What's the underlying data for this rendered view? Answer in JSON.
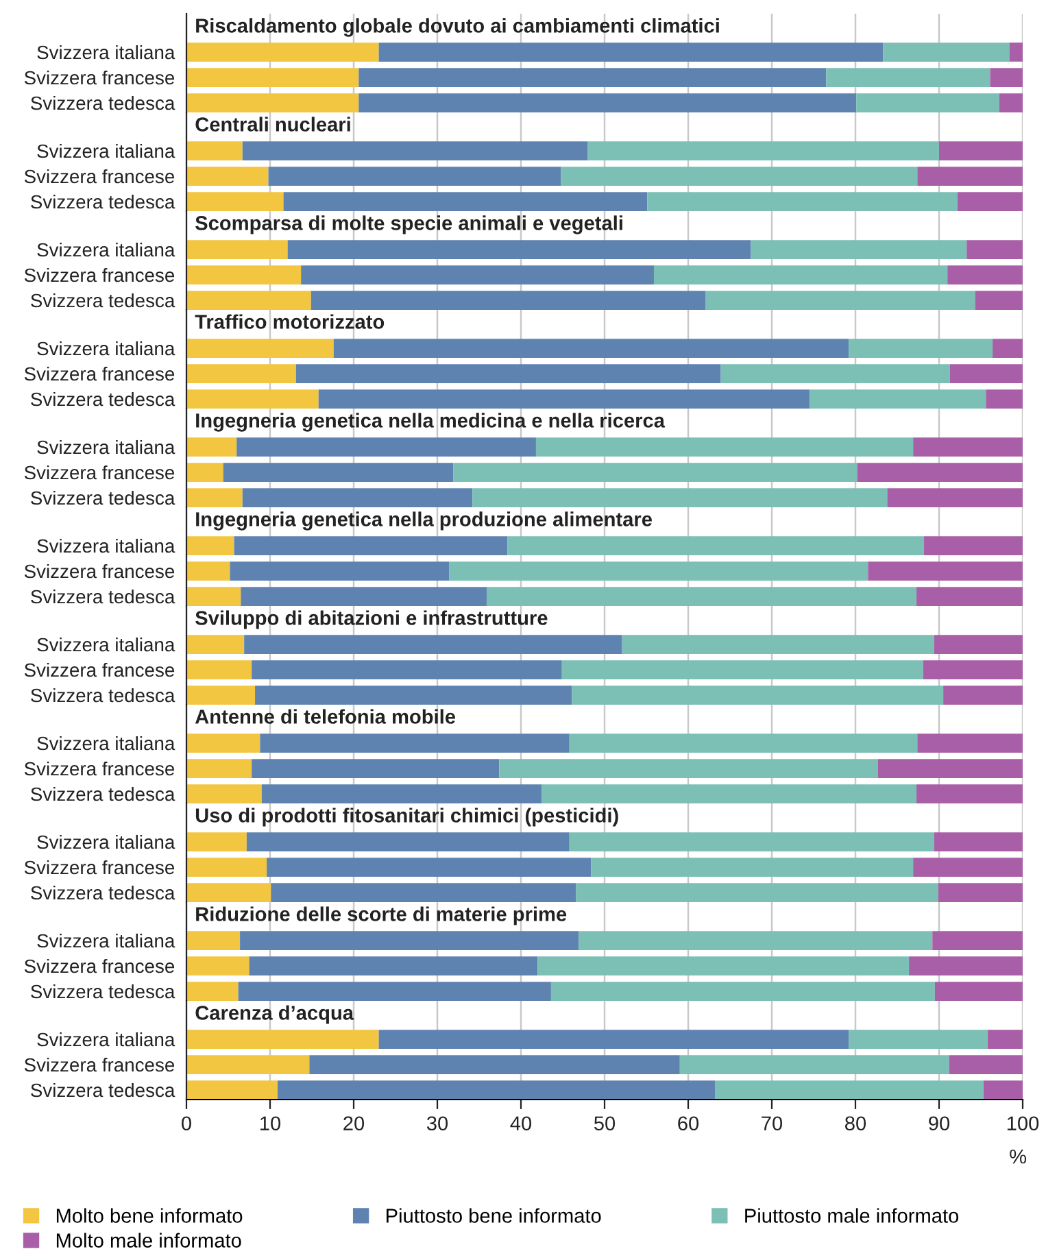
{
  "chart_data": [
    {
      "type": "bar",
      "orientation": "horizontal",
      "stacked": true,
      "title": "Riscaldamento globale dovuto ai cambiamenti climatici",
      "categories": [
        "Svizzera italiana",
        "Svizzera francese",
        "Svizzera tedesca"
      ],
      "xlim": [
        0,
        100
      ],
      "xticks": [
        0,
        10,
        20,
        30,
        40,
        50,
        60,
        70,
        80,
        90,
        100
      ],
      "grid": "x",
      "tick_labels": "y",
      "series": [
        {
          "color": "#f2c641",
          "values": [
            23.0,
            20.6,
            20.6
          ]
        },
        {
          "color": "#5f83b1",
          "values": [
            60.3,
            55.9,
            59.5
          ]
        },
        {
          "color": "#7bbfb5",
          "values": [
            15.1,
            19.6,
            17.1
          ]
        },
        {
          "color": "#a95fa7",
          "values": [
            1.6,
            3.9,
            2.8
          ]
        }
      ]
    },
    {
      "type": "bar",
      "orientation": "horizontal",
      "stacked": true,
      "title": "Centrali nucleari",
      "categories": [
        "Svizzera italiana",
        "Svizzera francese",
        "Svizzera tedesca"
      ],
      "xlim": [
        0,
        100
      ],
      "xticks": [
        0,
        10,
        20,
        30,
        40,
        50,
        60,
        70,
        80,
        90,
        100
      ],
      "grid": "x",
      "tick_labels": "y",
      "series": [
        {
          "color": "#f2c641",
          "values": [
            6.7,
            9.8,
            11.6
          ]
        },
        {
          "color": "#5f83b1",
          "values": [
            41.3,
            35.0,
            43.5
          ]
        },
        {
          "color": "#7bbfb5",
          "values": [
            42.0,
            42.6,
            37.1
          ]
        },
        {
          "color": "#a95fa7",
          "values": [
            10.0,
            12.6,
            7.8
          ]
        }
      ]
    },
    {
      "type": "bar",
      "orientation": "horizontal",
      "stacked": true,
      "title": "Scomparsa di molte specie animali e vegetali",
      "categories": [
        "Svizzera italiana",
        "Svizzera francese",
        "Svizzera tedesca"
      ],
      "xlim": [
        0,
        100
      ],
      "xticks": [
        0,
        10,
        20,
        30,
        40,
        50,
        60,
        70,
        80,
        90,
        100
      ],
      "grid": "x",
      "tick_labels": "y",
      "series": [
        {
          "color": "#f2c641",
          "values": [
            12.1,
            13.7,
            14.9
          ]
        },
        {
          "color": "#5f83b1",
          "values": [
            55.4,
            42.2,
            47.2
          ]
        },
        {
          "color": "#7bbfb5",
          "values": [
            25.8,
            35.1,
            32.2
          ]
        },
        {
          "color": "#a95fa7",
          "values": [
            6.7,
            9.0,
            5.7
          ]
        }
      ]
    },
    {
      "type": "bar",
      "orientation": "horizontal",
      "stacked": true,
      "title": "Traffico motorizzato",
      "categories": [
        "Svizzera italiana",
        "Svizzera francese",
        "Svizzera tedesca"
      ],
      "xlim": [
        0,
        100
      ],
      "xticks": [
        0,
        10,
        20,
        30,
        40,
        50,
        60,
        70,
        80,
        90,
        100
      ],
      "grid": "x",
      "tick_labels": "y",
      "series": [
        {
          "color": "#f2c641",
          "values": [
            17.6,
            13.1,
            15.8
          ]
        },
        {
          "color": "#5f83b1",
          "values": [
            61.6,
            50.8,
            58.7
          ]
        },
        {
          "color": "#7bbfb5",
          "values": [
            17.2,
            27.4,
            21.1
          ]
        },
        {
          "color": "#a95fa7",
          "values": [
            3.6,
            8.7,
            4.4
          ]
        }
      ]
    },
    {
      "type": "bar",
      "orientation": "horizontal",
      "stacked": true,
      "title": "Ingegneria genetica nella medicina e nella ricerca",
      "categories": [
        "Svizzera italiana",
        "Svizzera francese",
        "Svizzera tedesca"
      ],
      "xlim": [
        0,
        100
      ],
      "xticks": [
        0,
        10,
        20,
        30,
        40,
        50,
        60,
        70,
        80,
        90,
        100
      ],
      "grid": "x",
      "tick_labels": "y",
      "series": [
        {
          "color": "#f2c641",
          "values": [
            6.0,
            4.4,
            6.7
          ]
        },
        {
          "color": "#5f83b1",
          "values": [
            35.8,
            27.5,
            27.5
          ]
        },
        {
          "color": "#7bbfb5",
          "values": [
            45.1,
            48.3,
            49.6
          ]
        },
        {
          "color": "#a95fa7",
          "values": [
            13.1,
            19.8,
            16.2
          ]
        }
      ]
    },
    {
      "type": "bar",
      "orientation": "horizontal",
      "stacked": true,
      "title": "Ingegneria genetica nella produzione alimentare",
      "categories": [
        "Svizzera italiana",
        "Svizzera francese",
        "Svizzera tedesca"
      ],
      "xlim": [
        0,
        100
      ],
      "xticks": [
        0,
        10,
        20,
        30,
        40,
        50,
        60,
        70,
        80,
        90,
        100
      ],
      "grid": "x",
      "tick_labels": "y",
      "series": [
        {
          "color": "#f2c641",
          "values": [
            5.7,
            5.2,
            6.5
          ]
        },
        {
          "color": "#5f83b1",
          "values": [
            32.7,
            26.2,
            29.4
          ]
        },
        {
          "color": "#7bbfb5",
          "values": [
            49.8,
            50.1,
            51.4
          ]
        },
        {
          "color": "#a95fa7",
          "values": [
            11.8,
            18.5,
            12.7
          ]
        }
      ]
    },
    {
      "type": "bar",
      "orientation": "horizontal",
      "stacked": true,
      "title": "Sviluppo di abitazioni e infrastrutture",
      "categories": [
        "Svizzera italiana",
        "Svizzera francese",
        "Svizzera tedesca"
      ],
      "xlim": [
        0,
        100
      ],
      "xticks": [
        0,
        10,
        20,
        30,
        40,
        50,
        60,
        70,
        80,
        90,
        100
      ],
      "grid": "x",
      "tick_labels": "y",
      "series": [
        {
          "color": "#f2c641",
          "values": [
            6.9,
            7.8,
            8.2
          ]
        },
        {
          "color": "#5f83b1",
          "values": [
            45.2,
            37.1,
            37.9
          ]
        },
        {
          "color": "#7bbfb5",
          "values": [
            37.3,
            43.2,
            44.4
          ]
        },
        {
          "color": "#a95fa7",
          "values": [
            10.6,
            11.9,
            9.5
          ]
        }
      ]
    },
    {
      "type": "bar",
      "orientation": "horizontal",
      "stacked": true,
      "title": "Antenne di telefonia mobile",
      "categories": [
        "Svizzera italiana",
        "Svizzera francese",
        "Svizzera tedesca"
      ],
      "xlim": [
        0,
        100
      ],
      "xticks": [
        0,
        10,
        20,
        30,
        40,
        50,
        60,
        70,
        80,
        90,
        100
      ],
      "grid": "x",
      "tick_labels": "y",
      "series": [
        {
          "color": "#f2c641",
          "values": [
            8.8,
            7.8,
            9.0
          ]
        },
        {
          "color": "#5f83b1",
          "values": [
            37.0,
            29.6,
            33.5
          ]
        },
        {
          "color": "#7bbfb5",
          "values": [
            41.6,
            45.3,
            44.8
          ]
        },
        {
          "color": "#a95fa7",
          "values": [
            12.6,
            17.3,
            12.7
          ]
        }
      ]
    },
    {
      "type": "bar",
      "orientation": "horizontal",
      "stacked": true,
      "title": "Uso di prodotti fitosanitari chimici (pesticidi)",
      "categories": [
        "Svizzera italiana",
        "Svizzera francese",
        "Svizzera tedesca"
      ],
      "xlim": [
        0,
        100
      ],
      "xticks": [
        0,
        10,
        20,
        30,
        40,
        50,
        60,
        70,
        80,
        90,
        100
      ],
      "grid": "x",
      "tick_labels": "y",
      "series": [
        {
          "color": "#f2c641",
          "values": [
            7.2,
            9.6,
            10.1
          ]
        },
        {
          "color": "#5f83b1",
          "values": [
            38.6,
            38.8,
            36.5
          ]
        },
        {
          "color": "#7bbfb5",
          "values": [
            43.6,
            38.5,
            43.3
          ]
        },
        {
          "color": "#a95fa7",
          "values": [
            10.6,
            13.1,
            10.1
          ]
        }
      ]
    },
    {
      "type": "bar",
      "orientation": "horizontal",
      "stacked": true,
      "title": "Riduzione delle scorte di materie prime",
      "categories": [
        "Svizzera italiana",
        "Svizzera francese",
        "Svizzera tedesca"
      ],
      "xlim": [
        0,
        100
      ],
      "xticks": [
        0,
        10,
        20,
        30,
        40,
        50,
        60,
        70,
        80,
        90,
        100
      ],
      "grid": "x",
      "tick_labels": "y",
      "series": [
        {
          "color": "#f2c641",
          "values": [
            6.4,
            7.5,
            6.2
          ]
        },
        {
          "color": "#5f83b1",
          "values": [
            40.5,
            34.5,
            37.4
          ]
        },
        {
          "color": "#7bbfb5",
          "values": [
            42.3,
            44.4,
            45.9
          ]
        },
        {
          "color": "#a95fa7",
          "values": [
            10.8,
            13.6,
            10.5
          ]
        }
      ]
    },
    {
      "type": "bar",
      "orientation": "horizontal",
      "stacked": true,
      "title": "Carenza d’acqua",
      "categories": [
        "Svizzera italiana",
        "Svizzera francese",
        "Svizzera tedesca"
      ],
      "xlim": [
        0,
        100
      ],
      "xticks": [
        0,
        10,
        20,
        30,
        40,
        50,
        60,
        70,
        80,
        90,
        100
      ],
      "grid": "x",
      "xlabel": "%",
      "legend": "bottom",
      "series": [
        {
          "name": "Molto bene informato",
          "color": "#f2c641",
          "values": [
            23.0,
            14.7,
            10.9
          ]
        },
        {
          "name": "Piuttosto bene informato",
          "color": "#5f83b1",
          "values": [
            56.2,
            44.3,
            52.3
          ]
        },
        {
          "name": "Piuttosto male informato",
          "color": "#7bbfb5",
          "values": [
            16.6,
            32.2,
            32.1
          ]
        },
        {
          "name": "Molto male informato",
          "color": "#a95fa7",
          "values": [
            4.2,
            8.8,
            4.7
          ]
        }
      ]
    }
  ]
}
